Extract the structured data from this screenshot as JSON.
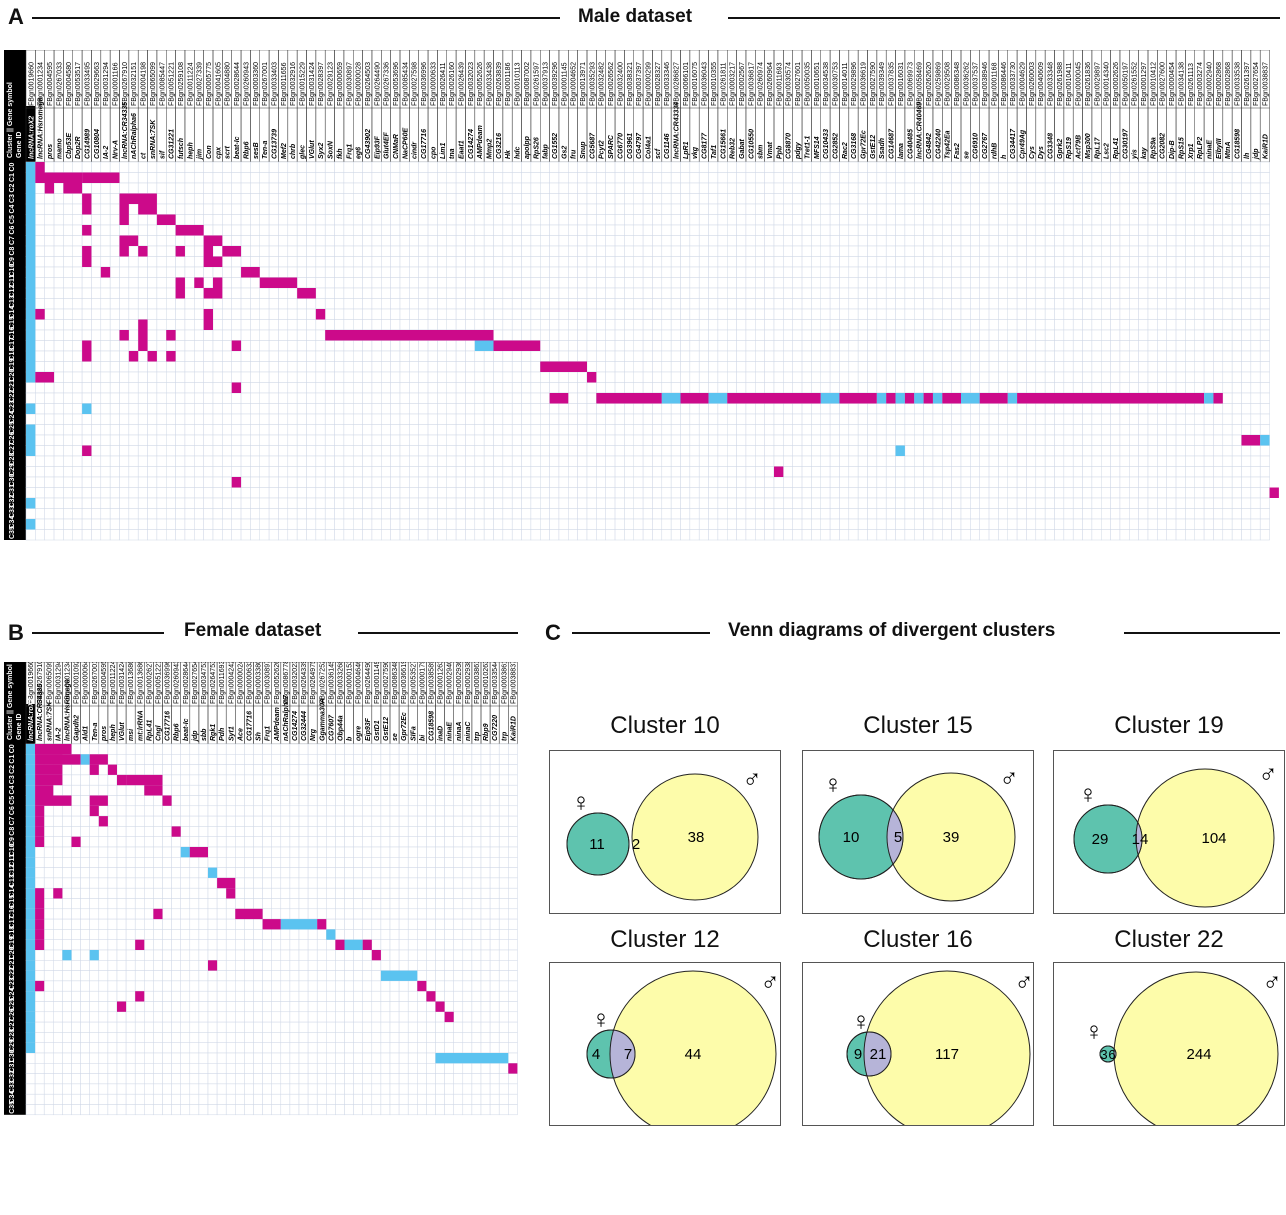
{
  "panel_a": {
    "label": "A",
    "title": "Male dataset",
    "header_labels": [
      "Cluster",
      "Gene symbol",
      "Gene ID"
    ],
    "clusters": [
      "C0",
      "C1",
      "C2",
      "C3",
      "C4",
      "C5",
      "C6",
      "C7",
      "C8",
      "C9",
      "C10",
      "C11",
      "C12",
      "C13",
      "C14",
      "C15",
      "C16",
      "C17",
      "C18",
      "C19",
      "C20",
      "C21",
      "C22",
      "C23",
      "C24",
      "C25",
      "C26",
      "C27",
      "C28",
      "C29",
      "C30",
      "C31",
      "C32",
      "C33",
      "C34",
      "C35"
    ],
    "gene_symbols": [
      "lncRNA:roX2",
      "lncRNA:Hsromega",
      "pros",
      "mamo",
      "Cbp53E",
      "Dop2R",
      "CG14989",
      "CG10804",
      "IA-2",
      "Nrv-A",
      "lncRNA:CR34335",
      "nAChRalpha6",
      "ct",
      "snRNA:7SK",
      "sif",
      "CG31221",
      "futsch",
      "heph",
      "jim",
      "Con",
      "cpx",
      "scrt",
      "beat-Ic",
      "Rbp6",
      "sesB",
      "Ten-a",
      "CG13739",
      "Mef2",
      "chrb",
      "glec",
      "VGlut",
      "Syx2",
      "SoxN",
      "fkh",
      "Frq1",
      "eg6",
      "CG43902",
      "Eip93F",
      "Glut4EF",
      "CNMaR",
      "NaCP60E",
      "cindr",
      "CG17716",
      "cpo",
      "Lim1",
      "tna",
      "Eaat1",
      "CG14274",
      "AMPdeam",
      "Mmp2",
      "CG3216",
      "Hk",
      "hdc",
      "apolpp",
      "RpS26",
      "fabp",
      "CG1552",
      "Gs2",
      "fru",
      "Snup",
      "CG5687",
      "Pcyt2",
      "SPARC",
      "CG6770",
      "CG3961",
      "CG4797",
      "Col4a1",
      "scf",
      "CG1146",
      "lncRNA:CR43334",
      "LpR1",
      "vkg",
      "CG8177",
      "Taf1",
      "CG15661",
      "Reb32",
      "Gabat",
      "CG10550",
      "sbm",
      "Vmat",
      "Ppb",
      "CG8870",
      "pdgy",
      "Tret1-1",
      "MFS14",
      "CG10433",
      "CG2852",
      "Rac2",
      "CG3168",
      "Gpr72Ec",
      "GstE12",
      "Ssadh",
      "CG14687",
      "lama",
      "CG40485",
      "lncRNA:CR40469",
      "CG4842",
      "CG42240",
      "Tsp42Ea",
      "Fas2",
      "se",
      "CG6910",
      "CG2767",
      "rdhB",
      "h",
      "CG34417",
      "Cpr49Ag",
      "Cys",
      "Dys",
      "CG3348",
      "Gprk2",
      "RpS19",
      "Act79B",
      "Msp300",
      "RpL17",
      "Lsc2",
      "RpL41",
      "CG30197",
      "yis",
      "kay",
      "RpS9a",
      "CG2082",
      "Dip-B",
      "RpS15",
      "Xrp1",
      "RpLP2",
      "ninaE",
      "ElbyIII",
      "MtnA",
      "CG18598",
      "lh",
      "jdp",
      "KaiR1D"
    ],
    "gene_ids": [
      "FBgn0019660",
      "FBgn0001234",
      "FBgn0004595",
      "FBgn0267033",
      "FBgn0004580",
      "FBgn0053517",
      "FBgn0033495",
      "FBgn0029663",
      "FBgn0031294",
      "FBgn0001166",
      "FBgn0267910",
      "FBgn0032151",
      "FBgn0004198",
      "FBgn0065099",
      "FBgn0085447",
      "FBgn0051221",
      "FBgn0259108",
      "FBgn0011224",
      "FBgn0027339",
      "FBgn0005775",
      "FBgn0041605",
      "FBgn0004880",
      "FBgn0028644",
      "FBgn0260943",
      "FBgn0003360",
      "FBgn0267001",
      "FBgn0033403",
      "FBgn0011656",
      "FBgn0032916",
      "FBgn0015229",
      "FBgn0031424",
      "FBgn0028397",
      "FBgn0029123",
      "FBgn0000659",
      "FBgn0030897",
      "FBgn0000028",
      "FBgn0264503",
      "FBgn0264490",
      "FBgn0267336",
      "FBgn0053696",
      "FBgn0085434",
      "FBgn0027598",
      "FBgn0036996",
      "FBgn0000633",
      "FBgn0026411",
      "FBgn0026160",
      "FBgn0026439",
      "FBgn0032023",
      "FBgn0052626",
      "FBgn0033438",
      "FBgn0263839",
      "FBgn0001186",
      "FBgn0010113",
      "FBgn0087002",
      "FBgn0261597",
      "FBgn0037913",
      "FBgn0039296",
      "FBgn0001145",
      "FBgn0004652",
      "FBgn0013971",
      "FBgn0035293",
      "FBgn0032482",
      "FBgn0026562",
      "FBgn0032400",
      "FBgn0038321",
      "FBgn0037397",
      "FBgn0000299",
      "FBgn0028327",
      "FBgn0033346",
      "FBgn0286827",
      "FBgn0066101",
      "FBgn0016075",
      "FBgn0036043",
      "FBgn0010355",
      "FBgn0261811",
      "FBgn0003217",
      "FBgn0002567",
      "FBgn0036817",
      "FBgn0260974",
      "FBgn0260964",
      "FBgn0011693",
      "FBgn0030574",
      "FBgn0027601",
      "FBgn0050035",
      "FBgn0010651",
      "FBgn0034538",
      "FBgn0030753",
      "FBgn0014011",
      "FBgn0029896",
      "FBgn0036619",
      "FBgn0027590",
      "FBgn0039349",
      "FBgn0037835",
      "FBgn0016031",
      "FBgn0069973",
      "FBgn0058469",
      "FBgn0262620",
      "FBgn0259869",
      "FBgn0029508",
      "FBgn0086348",
      "FBgn0036262",
      "FBgn0037537",
      "FBgn0038946",
      "FBgn0001168",
      "FBgn0086446",
      "FBgn0033730",
      "FBgn0004629",
      "FBgn0260003",
      "FBgn0040609",
      "FBgn0033348",
      "FBgn0261988",
      "FBgn0010411",
      "FBgn0000045",
      "FBgn0261836",
      "FBgn0029897",
      "FBgn0014340",
      "FBgn0002626",
      "FBgn0050197",
      "FBgn0261552",
      "FBgn0001297",
      "FBgn0010412",
      "FBgn0027600",
      "FBgn0000454",
      "FBgn0034138",
      "FBgn0261113",
      "FBgn0003274",
      "FBgn0002940",
      "FBgn0002868",
      "FBgn0002868b",
      "FBgn0033538",
      "FBgn0261397",
      "FBgn0027654",
      "FBgn0038837"
    ]
  },
  "panel_b": {
    "label": "B",
    "title": "Female dataset",
    "header_labels": [
      "Cluster",
      "Gene symbol",
      "Gene ID"
    ],
    "clusters": [
      "C0",
      "C1",
      "C2",
      "C3",
      "C4",
      "C5",
      "C6",
      "C7",
      "C8",
      "C9",
      "C10",
      "C11",
      "C12",
      "C13",
      "C14",
      "C15",
      "C16",
      "C17",
      "C18",
      "C19",
      "C20",
      "C21",
      "C22",
      "C23",
      "C24",
      "C25",
      "C26",
      "C27",
      "C28",
      "C29",
      "C30",
      "C31",
      "C32",
      "C33",
      "C34",
      "C35"
    ],
    "gene_symbols": [
      "lncRNA:roX2",
      "lncRNA:CR34335",
      "snRNA:7SK",
      "IA-2",
      "lncRNA:Hsromega",
      "Gapdh2",
      "Ald1",
      "Ten-a",
      "pros",
      "heph",
      "VGlut",
      "msi",
      "mt:lrRNA",
      "RpL41",
      "Cngl",
      "CG17716",
      "Rbp6",
      "beat-Ic",
      "jdp",
      "sbb",
      "Rgk1",
      "Pdh",
      "Syt1",
      "Ace",
      "CG17716",
      "Sh",
      "Frq1",
      "AMPdeam",
      "nAChRalpha7",
      "CG14274",
      "CG32444",
      "Nrg",
      "Ggamma30A",
      "CG7607",
      "Obp44a",
      "b",
      "ogre",
      "Eip93F",
      "GstD1",
      "GstE12",
      "se",
      "Gpr72Ec",
      "SIFa",
      "bi",
      "CG18598",
      "inaD",
      "ninaE",
      "ninaA",
      "ninaC",
      "trp",
      "Rbp9",
      "CG7220",
      "trp",
      "KaiR1D"
    ],
    "gene_ids": [
      "FBgn0019660",
      "FBgn0267910",
      "FBgn0065099",
      "FBgn0031294",
      "FBgn0001234",
      "FBgn0001092",
      "FBgn0000064",
      "FBgn0267001",
      "FBgn0004595",
      "FBgn0011224",
      "FBgn0031424",
      "FBgn0013686",
      "FBgn0013686b",
      "FBgn0002627",
      "FBgn0051221",
      "FBgn0036996",
      "FBgn0260943",
      "FBgn0028644",
      "FBgn0027654",
      "FBgn0034753",
      "FBgn0264753",
      "FBgn0011693",
      "FBgn0004242",
      "FBgn0000024",
      "FBgn0000633",
      "FBgn0003380",
      "FBgn0030897",
      "FBgn0052626",
      "FBgn0086778",
      "FBgn0032023",
      "FBgn0264339",
      "FBgn0264975",
      "FBgn0267252",
      "FBgn0036145",
      "FBgn0033268",
      "FBgn0000153",
      "FBgn0004646",
      "FBgn0264490",
      "FBgn0001149",
      "FBgn0027590",
      "FBgn0086348",
      "FBgn0036619",
      "FBgn0053527",
      "FBgn0000179",
      "FBgn0038589",
      "FBgn0001263",
      "FBgn0002940",
      "FBgn0002936",
      "FBgn0002938",
      "FBgn0003861",
      "FBgn0010263",
      "FBgn0033544",
      "FBgn0003861b",
      "FBgn0038837"
    ]
  },
  "panel_c": {
    "label": "C",
    "title": "Venn diagrams of divergent clusters",
    "female_symbol": "♀",
    "male_symbol": "♂",
    "colors": {
      "female": "#5ec3ae",
      "male": "#fdfcaa",
      "overlap": "#b6b4d8",
      "magenta": "#cc0a8a",
      "cyan": "#5bc3f0"
    },
    "venns": [
      {
        "title": "Cluster 10",
        "female_only": "11",
        "overlap": "2",
        "male_only": "38"
      },
      {
        "title": "Cluster 15",
        "female_only": "10",
        "overlap": "5",
        "male_only": "39"
      },
      {
        "title": "Cluster 19",
        "female_only": "29",
        "overlap": "14",
        "male_only": "104"
      },
      {
        "title": "Cluster 12",
        "female_only": "4",
        "overlap": "7",
        "male_only": "44"
      },
      {
        "title": "Cluster 16",
        "female_only": "9",
        "overlap": "21",
        "male_only": "117"
      },
      {
        "title": "Cluster 22",
        "female_only": "3",
        "overlap": "6",
        "male_only": "244"
      }
    ]
  }
}
